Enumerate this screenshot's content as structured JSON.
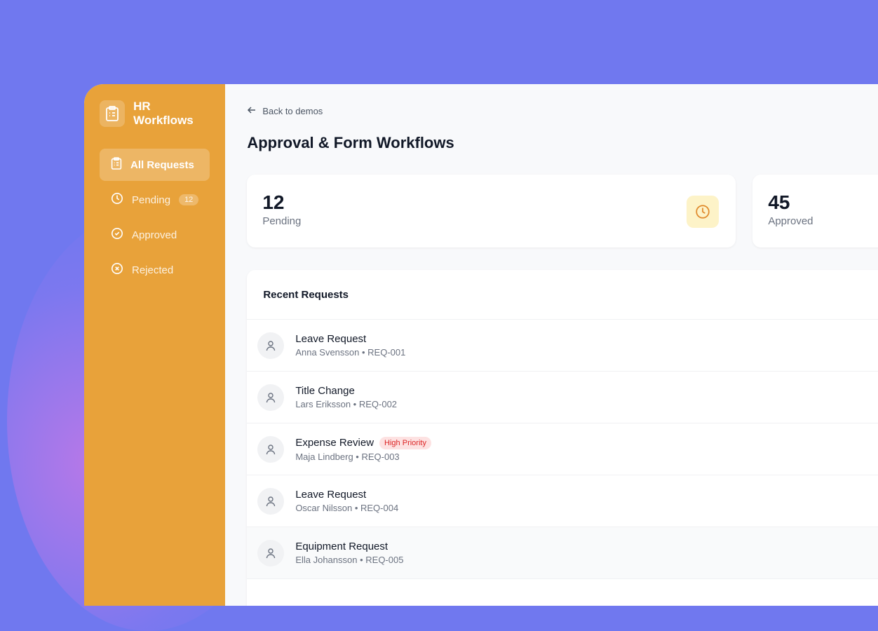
{
  "app": {
    "name": "HR Workflows",
    "accent": "#E8A23A"
  },
  "sidebar": {
    "items": [
      {
        "label": "All Requests",
        "icon": "clipboard-icon",
        "active": true
      },
      {
        "label": "Pending",
        "icon": "clock-icon",
        "badge": "12"
      },
      {
        "label": "Approved",
        "icon": "check-circle-icon"
      },
      {
        "label": "Rejected",
        "icon": "x-circle-icon"
      }
    ]
  },
  "header": {
    "back": "Back to demos",
    "title": "Approval & Form Workflows"
  },
  "stats": [
    {
      "value": "12",
      "label": "Pending",
      "icon": "clock-icon"
    },
    {
      "value": "45",
      "label": "Approved"
    }
  ],
  "recent": {
    "title": "Recent Requests",
    "items": [
      {
        "title": "Leave Request",
        "sub": "Anna Svensson • REQ-001"
      },
      {
        "title": "Title Change",
        "sub": "Lars Eriksson • REQ-002"
      },
      {
        "title": "Expense Review",
        "sub": "Maja Lindberg • REQ-003",
        "tag": "High Priority"
      },
      {
        "title": "Leave Request",
        "sub": "Oscar Nilsson • REQ-004"
      },
      {
        "title": "Equipment Request",
        "sub": "Ella Johansson • REQ-005"
      }
    ]
  }
}
